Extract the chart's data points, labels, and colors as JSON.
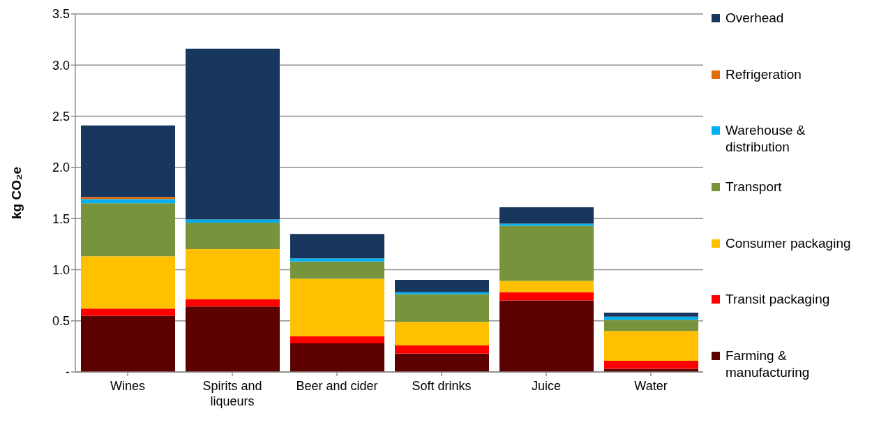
{
  "chart_data": {
    "type": "bar",
    "stacked": true,
    "ylabel": "kg CO₂e",
    "categories": [
      "Wines",
      "Spirits and liqueurs",
      "Beer and cider",
      "Soft drinks",
      "Juice",
      "Water"
    ],
    "series": [
      {
        "name": "Farming & manufacturing",
        "color": "#5c0000",
        "values": [
          0.55,
          0.64,
          0.28,
          0.18,
          0.7,
          0.03
        ]
      },
      {
        "name": "Transit packaging",
        "color": "#ff0000",
        "values": [
          0.07,
          0.07,
          0.07,
          0.08,
          0.08,
          0.08
        ]
      },
      {
        "name": "Consumer packaging",
        "color": "#ffc000",
        "values": [
          0.51,
          0.49,
          0.56,
          0.23,
          0.11,
          0.29
        ]
      },
      {
        "name": "Transport",
        "color": "#77933c",
        "values": [
          0.52,
          0.26,
          0.17,
          0.27,
          0.54,
          0.11
        ]
      },
      {
        "name": "Warehouse & distribution",
        "color": "#00b0f0",
        "values": [
          0.04,
          0.03,
          0.03,
          0.02,
          0.02,
          0.03
        ]
      },
      {
        "name": "Refrigeration",
        "color": "#e36c09",
        "values": [
          0.02,
          0,
          0,
          0,
          0,
          0
        ]
      },
      {
        "name": "Overhead",
        "color": "#17375e",
        "values": [
          0.7,
          1.67,
          0.24,
          0.12,
          0.16,
          0.04
        ]
      }
    ],
    "ylim": [
      0,
      3.5
    ],
    "yticks": [
      {
        "value": 0,
        "label": "-"
      },
      {
        "value": 0.5,
        "label": "0.5"
      },
      {
        "value": 1,
        "label": "1.0"
      },
      {
        "value": 1.5,
        "label": "1.5"
      },
      {
        "value": 2,
        "label": "2.0"
      },
      {
        "value": 2.5,
        "label": "2.5"
      },
      {
        "value": 3,
        "label": "3.0"
      },
      {
        "value": 3.5,
        "label": "3.5"
      }
    ],
    "grid": "y",
    "legend": "right"
  }
}
